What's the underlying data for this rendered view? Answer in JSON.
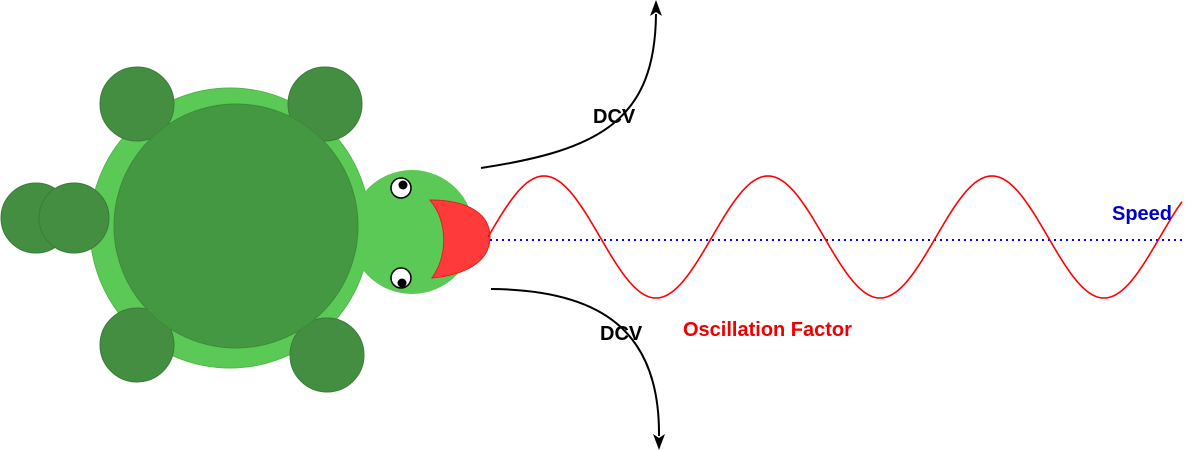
{
  "labels": {
    "dcv_top": "DCV",
    "dcv_bottom": "DCV",
    "speed": "Speed",
    "oscillation": "Oscillation Factor"
  },
  "colors": {
    "shell_outer": "#5ac956",
    "shell_inner": "#439841",
    "limb": "#448e41",
    "limb_stroke": "#3a7d37",
    "head": "#5ac956",
    "tongue": "#ff3a3a",
    "eye_white": "#ffffff",
    "pupil": "#000000",
    "speed_line": "#0000ff",
    "speed_text": "#0000cc",
    "wave": "#ff0000",
    "oscillation_text": "#ee0000",
    "arrow": "#000000"
  }
}
